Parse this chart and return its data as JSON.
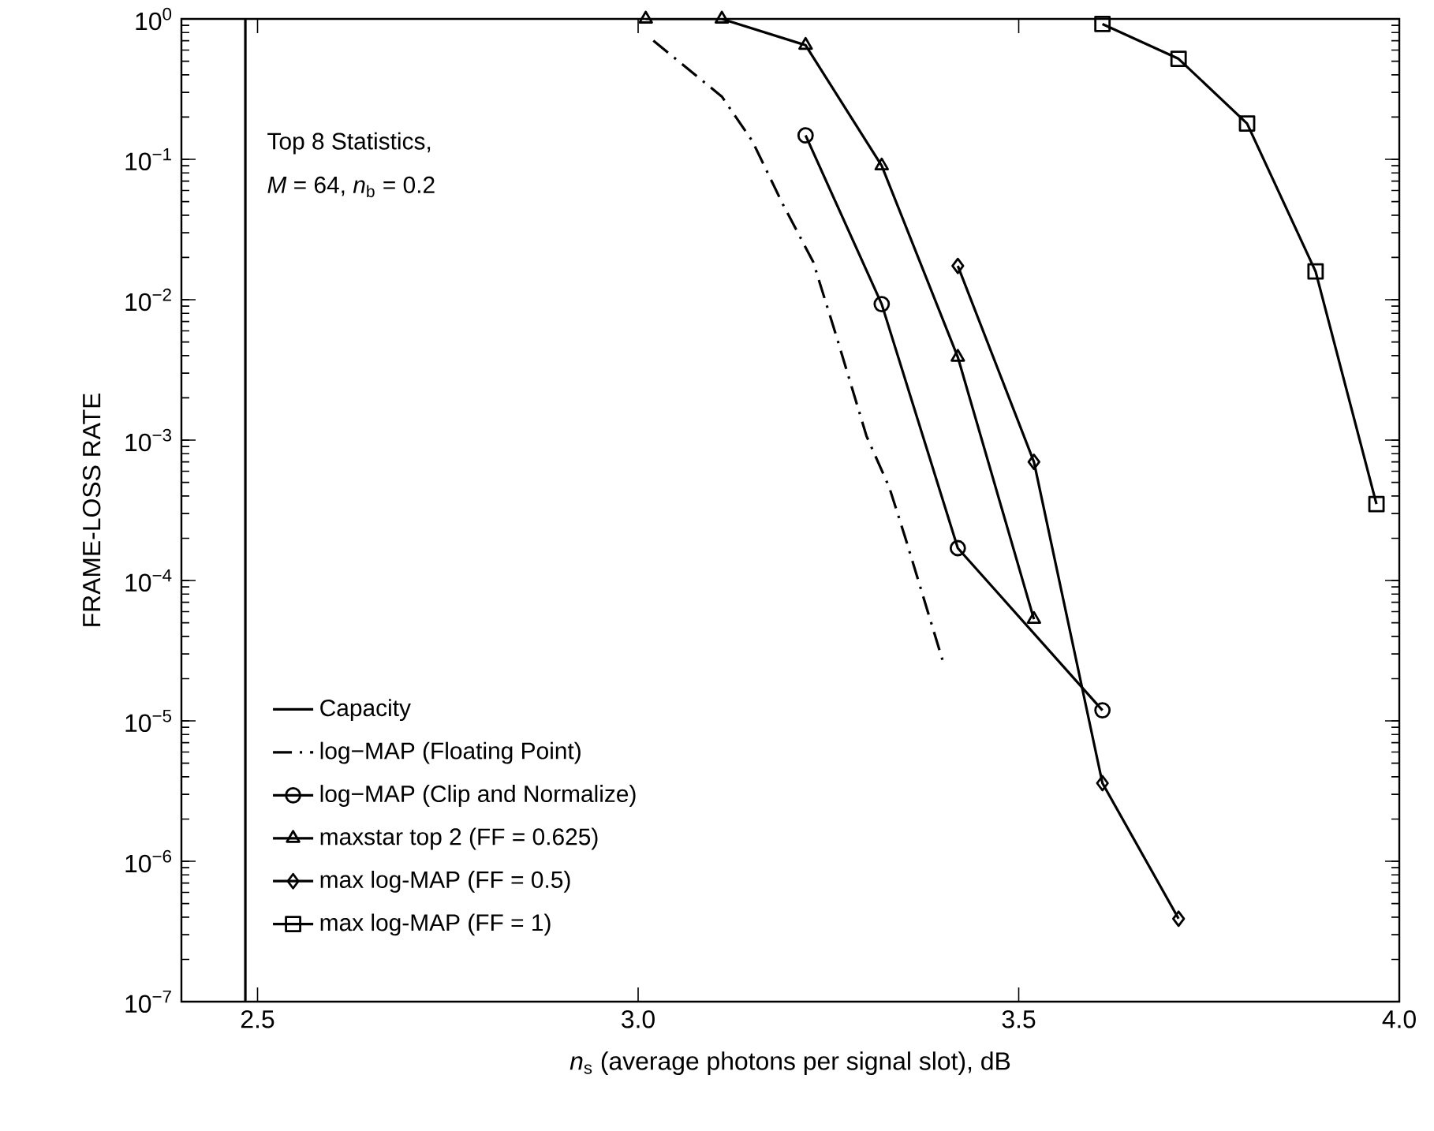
{
  "chart_data": {
    "type": "line",
    "xlabel": "*n*$_{s}$ (average photons per signal slot), dB",
    "ylabel": "FRAME-LOSS RATE",
    "annotations": [
      "Top 8 Statistics,",
      "*M* = 64,  *n*$_{b}$ = 0.2"
    ],
    "log": "y",
    "grid": false,
    "legend": "bottom left",
    "xlim": [
      2.4,
      4.0
    ],
    "ylim": [
      1e-07,
      1
    ],
    "xticks": [
      2.5,
      {
        "value": 3.0,
        "label": "3.0"
      },
      3.5,
      {
        "value": 4.0,
        "label": "4.0"
      }
    ],
    "yticks": [
      {
        "value": 1e-07,
        "label": "10$^{−7}$"
      },
      {
        "value": 1e-06,
        "label": "10$^{−6}$"
      },
      {
        "value": 1e-05,
        "label": "10$^{−5}$"
      },
      {
        "value": 0.0001,
        "label": "10$^{−4}$"
      },
      {
        "value": 0.001,
        "label": "10$^{−3}$"
      },
      {
        "value": 0.01,
        "label": "10$^{−2}$"
      },
      {
        "value": 0.1,
        "label": "10$^{−1}$"
      },
      {
        "value": 1,
        "label": "10$^{0}$"
      }
    ],
    "series": [
      {
        "name": "Capacity",
        "color": "#000000",
        "marker": "none",
        "line_style": "solid",
        "x": [
          2.484,
          2.484
        ],
        "values": [
          1e-07,
          1
        ]
      },
      {
        "name": "log−MAP (Floating Point)",
        "color": "#000000",
        "marker": "none",
        "line_style": "dashdot",
        "x": [
          3.02,
          3.11,
          3.15,
          3.19,
          3.23,
          3.26,
          3.3,
          3.33,
          3.35,
          3.4
        ],
        "values": [
          0.7,
          0.28,
          0.135,
          0.048,
          0.0186,
          0.0056,
          0.00107,
          0.00046,
          0.00021,
          2.7e-05
        ]
      },
      {
        "name": "log−MAP (Clip and Normalize)",
        "color": "#000000",
        "marker": "circle",
        "line_style": "solid",
        "x": [
          3.22,
          3.32,
          3.42,
          3.61
        ],
        "values": [
          0.148,
          0.0093,
          0.00017,
          1.19e-05
        ]
      },
      {
        "name": "maxstar top 2 (FF = 0.625)",
        "color": "#000000",
        "marker": "triangle",
        "line_style": "solid",
        "x": [
          3.01,
          3.11,
          3.22,
          3.32,
          3.42,
          3.52
        ],
        "values": [
          1,
          1,
          0.65,
          0.09,
          0.0039,
          5.3e-05
        ]
      },
      {
        "name": "max log-MAP (FF = 0.5)",
        "color": "#000000",
        "marker": "diamond",
        "line_style": "solid",
        "x": [
          3.42,
          3.52,
          3.61,
          3.71
        ],
        "values": [
          0.0174,
          0.0007,
          3.6e-06,
          3.9e-07
        ]
      },
      {
        "name": "max log-MAP (FF = 1)",
        "color": "#000000",
        "marker": "square",
        "line_style": "solid",
        "x": [
          3.61,
          3.71,
          3.8,
          3.89,
          3.97
        ],
        "values": [
          0.92,
          0.52,
          0.18,
          0.0159,
          0.00035
        ]
      }
    ]
  }
}
